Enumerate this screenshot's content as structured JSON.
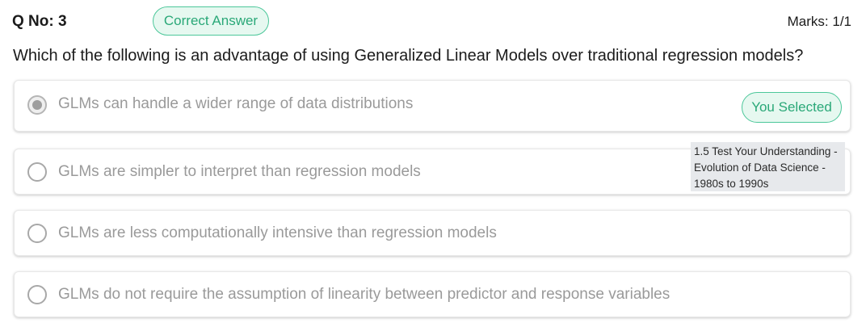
{
  "header": {
    "question_number": "Q No: 3",
    "status_badge": "Correct Answer",
    "marks": "Marks: 1/1"
  },
  "question": {
    "text": "Which of the following is an advantage of using Generalized Linear Models over traditional regression models?"
  },
  "options": [
    {
      "text": "GLMs can handle a wider range of data distributions",
      "selected": true,
      "badge": "You Selected"
    },
    {
      "text": "GLMs are simpler to interpret than regression models",
      "selected": false
    },
    {
      "text": "GLMs are less computationally intensive than regression models",
      "selected": false
    },
    {
      "text": "GLMs do not require the assumption of linearity between predictor and response variables",
      "selected": false
    }
  ],
  "tooltip": {
    "line1": "1.5 Test Your Understanding -",
    "line2": "Evolution of Data Science -",
    "line3": "1980s to 1990s"
  },
  "colors": {
    "accent_green": "#2aa878",
    "badge_bg": "#e6f8f0",
    "option_text": "#9a9a9a"
  }
}
